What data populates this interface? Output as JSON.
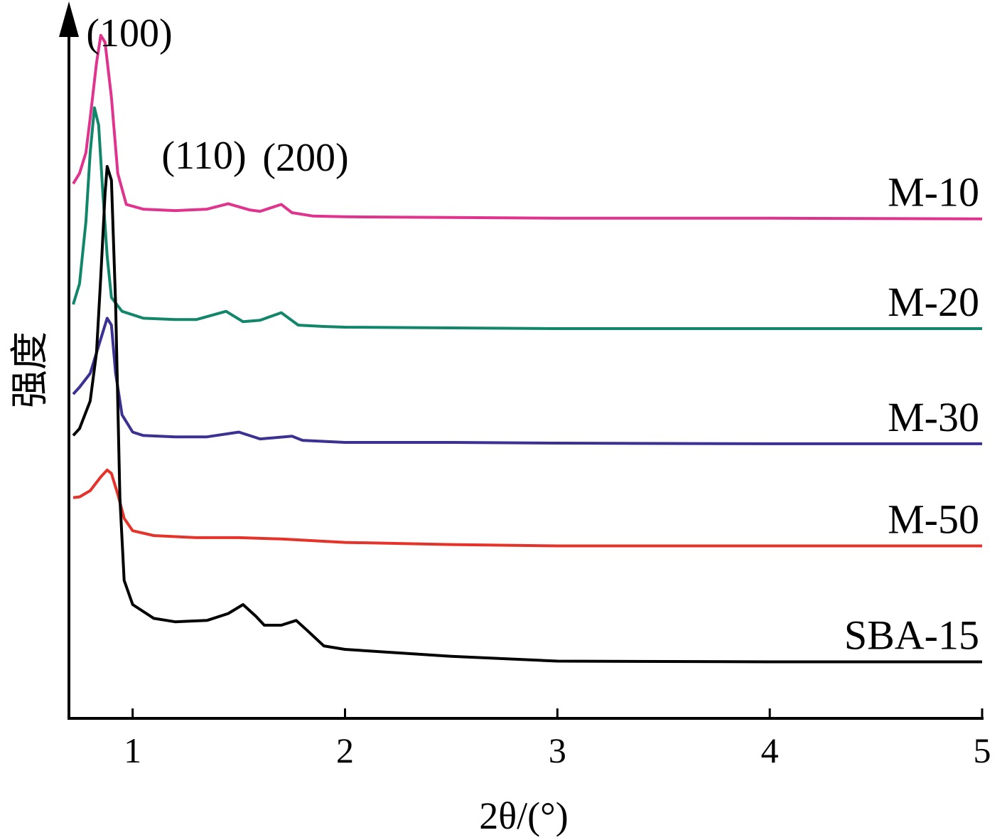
{
  "chart_data": {
    "type": "line",
    "title": "",
    "xlabel": "2θ/(°)",
    "ylabel": "强度",
    "xlim": [
      0.7,
      5
    ],
    "x_ticks": [
      1,
      2,
      3,
      4,
      5
    ],
    "x_tick_labels": [
      "1",
      "2",
      "3",
      "4",
      "5"
    ],
    "y_ticks": [],
    "grid": false,
    "legend": "none; series labelled at right end of each curve",
    "peak_annotations": [
      "(100)",
      "(110)",
      "(200)"
    ],
    "series": [
      {
        "name": "M-10",
        "color": "#e0338e",
        "points": [
          [
            0.72,
            0.775
          ],
          [
            0.75,
            0.79
          ],
          [
            0.78,
            0.82
          ],
          [
            0.8,
            0.87
          ],
          [
            0.83,
            0.95
          ],
          [
            0.85,
            0.99
          ],
          [
            0.87,
            0.98
          ],
          [
            0.9,
            0.9
          ],
          [
            0.93,
            0.79
          ],
          [
            0.97,
            0.745
          ],
          [
            1.05,
            0.738
          ],
          [
            1.2,
            0.736
          ],
          [
            1.35,
            0.738
          ],
          [
            1.45,
            0.746
          ],
          [
            1.55,
            0.737
          ],
          [
            1.6,
            0.735
          ],
          [
            1.7,
            0.745
          ],
          [
            1.75,
            0.733
          ],
          [
            1.85,
            0.728
          ],
          [
            2.0,
            0.727
          ],
          [
            2.5,
            0.726
          ],
          [
            3.0,
            0.725
          ],
          [
            4.0,
            0.725
          ],
          [
            5.0,
            0.724
          ]
        ]
      },
      {
        "name": "M-20",
        "color": "#12866a",
        "points": [
          [
            0.72,
            0.6
          ],
          [
            0.75,
            0.63
          ],
          [
            0.78,
            0.72
          ],
          [
            0.8,
            0.82
          ],
          [
            0.82,
            0.885
          ],
          [
            0.84,
            0.86
          ],
          [
            0.86,
            0.76
          ],
          [
            0.88,
            0.67
          ],
          [
            0.9,
            0.61
          ],
          [
            0.95,
            0.59
          ],
          [
            1.05,
            0.58
          ],
          [
            1.2,
            0.578
          ],
          [
            1.3,
            0.578
          ],
          [
            1.44,
            0.59
          ],
          [
            1.52,
            0.575
          ],
          [
            1.6,
            0.577
          ],
          [
            1.7,
            0.588
          ],
          [
            1.78,
            0.57
          ],
          [
            1.9,
            0.568
          ],
          [
            2.0,
            0.567
          ],
          [
            2.5,
            0.566
          ],
          [
            3.0,
            0.565
          ],
          [
            4.0,
            0.565
          ],
          [
            5.0,
            0.565
          ]
        ]
      },
      {
        "name": "M-30",
        "color": "#3a3192",
        "points": [
          [
            0.72,
            0.47
          ],
          [
            0.75,
            0.48
          ],
          [
            0.8,
            0.5
          ],
          [
            0.84,
            0.54
          ],
          [
            0.88,
            0.58
          ],
          [
            0.9,
            0.57
          ],
          [
            0.92,
            0.5
          ],
          [
            0.95,
            0.44
          ],
          [
            1.0,
            0.415
          ],
          [
            1.05,
            0.41
          ],
          [
            1.2,
            0.408
          ],
          [
            1.35,
            0.408
          ],
          [
            1.5,
            0.415
          ],
          [
            1.6,
            0.405
          ],
          [
            1.75,
            0.409
          ],
          [
            1.8,
            0.403
          ],
          [
            2.0,
            0.4
          ],
          [
            2.5,
            0.4
          ],
          [
            3.0,
            0.399
          ],
          [
            4.0,
            0.398
          ],
          [
            5.0,
            0.398
          ]
        ]
      },
      {
        "name": "M-50",
        "color": "#e5332a",
        "points": [
          [
            0.72,
            0.32
          ],
          [
            0.75,
            0.321
          ],
          [
            0.8,
            0.33
          ],
          [
            0.85,
            0.35
          ],
          [
            0.88,
            0.36
          ],
          [
            0.9,
            0.355
          ],
          [
            0.93,
            0.325
          ],
          [
            0.96,
            0.29
          ],
          [
            1.0,
            0.272
          ],
          [
            1.1,
            0.265
          ],
          [
            1.3,
            0.262
          ],
          [
            1.5,
            0.262
          ],
          [
            1.7,
            0.26
          ],
          [
            2.0,
            0.255
          ],
          [
            2.5,
            0.252
          ],
          [
            3.0,
            0.25
          ],
          [
            4.0,
            0.25
          ],
          [
            5.0,
            0.25
          ]
        ]
      },
      {
        "name": "SBA-15",
        "color": "#000000",
        "points": [
          [
            0.72,
            0.41
          ],
          [
            0.75,
            0.42
          ],
          [
            0.8,
            0.46
          ],
          [
            0.83,
            0.53
          ],
          [
            0.85,
            0.64
          ],
          [
            0.87,
            0.76
          ],
          [
            0.88,
            0.8
          ],
          [
            0.9,
            0.78
          ],
          [
            0.92,
            0.6
          ],
          [
            0.94,
            0.32
          ],
          [
            0.96,
            0.2
          ],
          [
            1.0,
            0.165
          ],
          [
            1.1,
            0.145
          ],
          [
            1.2,
            0.14
          ],
          [
            1.35,
            0.142
          ],
          [
            1.45,
            0.152
          ],
          [
            1.52,
            0.165
          ],
          [
            1.58,
            0.148
          ],
          [
            1.62,
            0.135
          ],
          [
            1.7,
            0.135
          ],
          [
            1.77,
            0.142
          ],
          [
            1.82,
            0.128
          ],
          [
            1.9,
            0.105
          ],
          [
            2.0,
            0.1
          ],
          [
            2.5,
            0.09
          ],
          [
            3.0,
            0.083
          ],
          [
            4.0,
            0.082
          ],
          [
            5.0,
            0.082
          ]
        ]
      }
    ]
  }
}
